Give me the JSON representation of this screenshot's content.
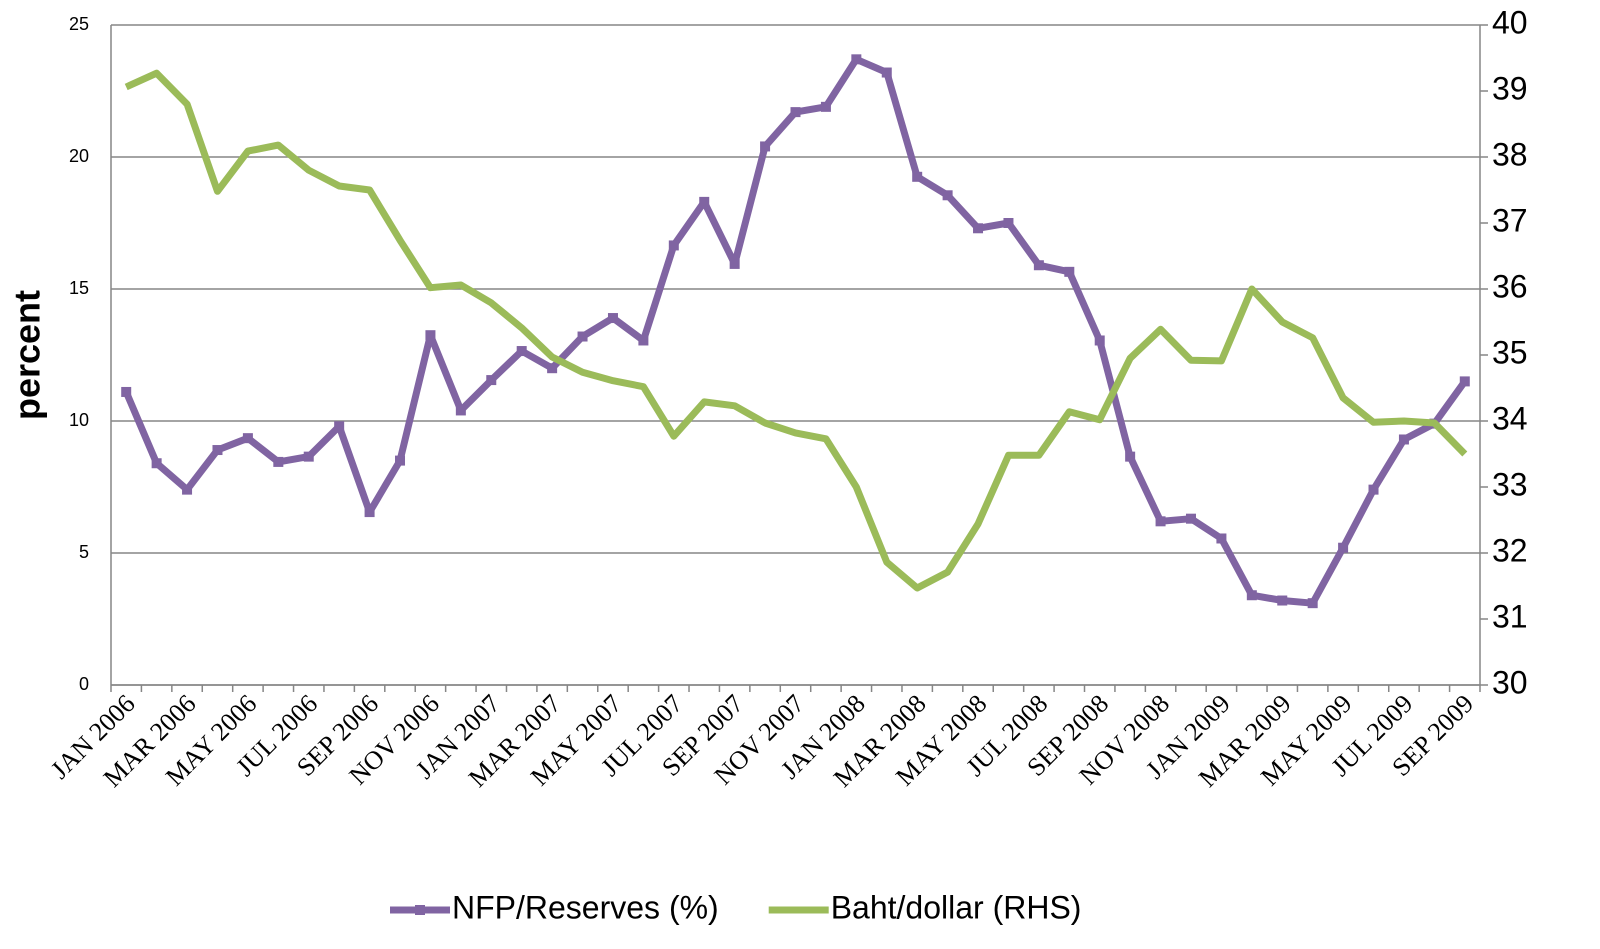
{
  "chart_data": {
    "type": "line",
    "y_label": "percent",
    "categories": [
      "JAN 2006",
      null,
      "MAR 2006",
      null,
      "MAY 2006",
      null,
      "JUL 2006",
      null,
      "SEP 2006",
      null,
      "NOV 2006",
      null,
      "JAN 2007",
      null,
      "MAR 2007",
      null,
      "MAY 2007",
      null,
      "JUL 2007",
      null,
      "SEP 2007",
      null,
      "NOV 2007",
      null,
      "JAN 2008",
      null,
      "MAR 2008",
      null,
      "MAY 2008",
      null,
      "JUL 2008",
      null,
      "SEP 2008",
      null,
      "NOV 2008",
      null,
      "JAN 2009",
      null,
      "MAR 2009",
      null,
      "MAY 2009",
      null,
      "JUL 2009",
      null,
      "SEP 2009"
    ],
    "series": [
      {
        "name": "NFP/Reserves (%)",
        "color": "#8064a2",
        "marker": true,
        "values": [
          11.1,
          8.4,
          7.4,
          8.9,
          9.35,
          8.45,
          8.65,
          9.8,
          6.55,
          8.5,
          13.25,
          10.4,
          11.55,
          12.65,
          12.0,
          13.2,
          13.9,
          13.05,
          16.65,
          18.3,
          15.95,
          20.4,
          21.7,
          21.9,
          23.7,
          23.2,
          19.25,
          18.55,
          17.3,
          17.5,
          15.9,
          15.65,
          13.05,
          8.65,
          6.2,
          6.3,
          5.55,
          3.4,
          3.2,
          3.1,
          5.2,
          7.4,
          9.3,
          9.9,
          11.5
        ]
      },
      {
        "name": "Baht/dollar (RHS)",
        "color": "#9bbb59",
        "marker": false,
        "axis": "y2",
        "values": [
          39.06,
          39.27,
          38.8,
          37.48,
          38.09,
          38.18,
          37.8,
          37.56,
          37.5,
          36.74,
          36.02,
          36.06,
          35.79,
          35.41,
          34.97,
          34.74,
          34.61,
          34.52,
          33.77,
          34.29,
          34.23,
          33.97,
          33.82,
          33.73,
          33.0,
          31.86,
          31.47,
          31.71,
          32.44,
          33.48,
          33.48,
          34.14,
          34.02,
          34.95,
          35.39,
          34.92,
          34.91,
          36.0,
          35.5,
          35.26,
          34.35,
          33.98,
          34.0,
          33.97,
          33.5
        ]
      }
    ],
    "ylim": [
      0,
      25
    ],
    "yticks": [
      0,
      5,
      10,
      15,
      20,
      25
    ],
    "y2lim": [
      30,
      40
    ],
    "y2ticks": [
      30,
      31,
      32,
      33,
      34,
      35,
      36,
      37,
      38,
      39,
      40
    ],
    "grid": true,
    "legend": "bottom"
  }
}
